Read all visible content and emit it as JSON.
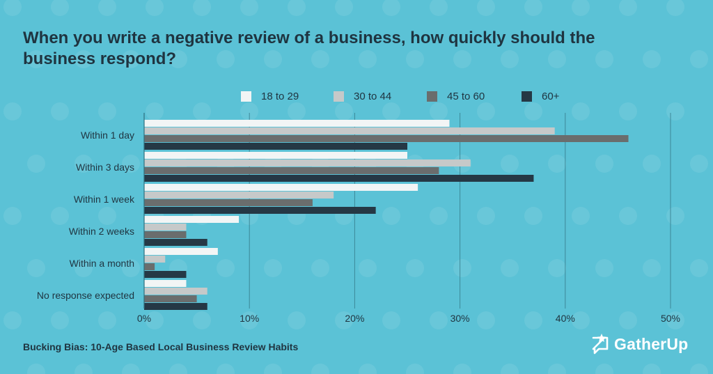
{
  "page": {
    "title": "When you write a negative review of a business, how quickly should the business respond?",
    "footer": "Bucking Bias: 10-Age Based Local Business Review Habits",
    "logo_text": "GatherUp",
    "logo_icon": "chat-bubble-star-icon",
    "background_color": "#5bc2d6",
    "text_color": "#1f3440"
  },
  "chart_data": {
    "type": "bar",
    "orientation": "horizontal",
    "title": "When you write a negative review of a business, how quickly should the business respond?",
    "categories": [
      "Within 1 day",
      "Within 3 days",
      "Within 1 week",
      "Within 2 weeks",
      "Within a month",
      "No response expected"
    ],
    "series": [
      {
        "name": "18 to 29",
        "color": "#f2f5f5",
        "values": [
          29,
          25,
          26,
          9,
          7,
          4
        ]
      },
      {
        "name": "30 to 44",
        "color": "#c6c9c9",
        "values": [
          39,
          31,
          18,
          4,
          2,
          6
        ]
      },
      {
        "name": "45 to 60",
        "color": "#6a6d6d",
        "values": [
          46,
          28,
          16,
          4,
          1,
          5
        ]
      },
      {
        "name": "60+",
        "color": "#253845",
        "values": [
          25,
          37,
          22,
          6,
          4,
          6
        ]
      }
    ],
    "xlim": [
      0,
      50
    ],
    "xticks": [
      0,
      10,
      20,
      30,
      40,
      50
    ],
    "xtick_labels": [
      "0%",
      "10%",
      "20%",
      "30%",
      "40%",
      "50%"
    ],
    "xlabel": "",
    "ylabel": "",
    "grid": true,
    "legend_position": "top"
  }
}
